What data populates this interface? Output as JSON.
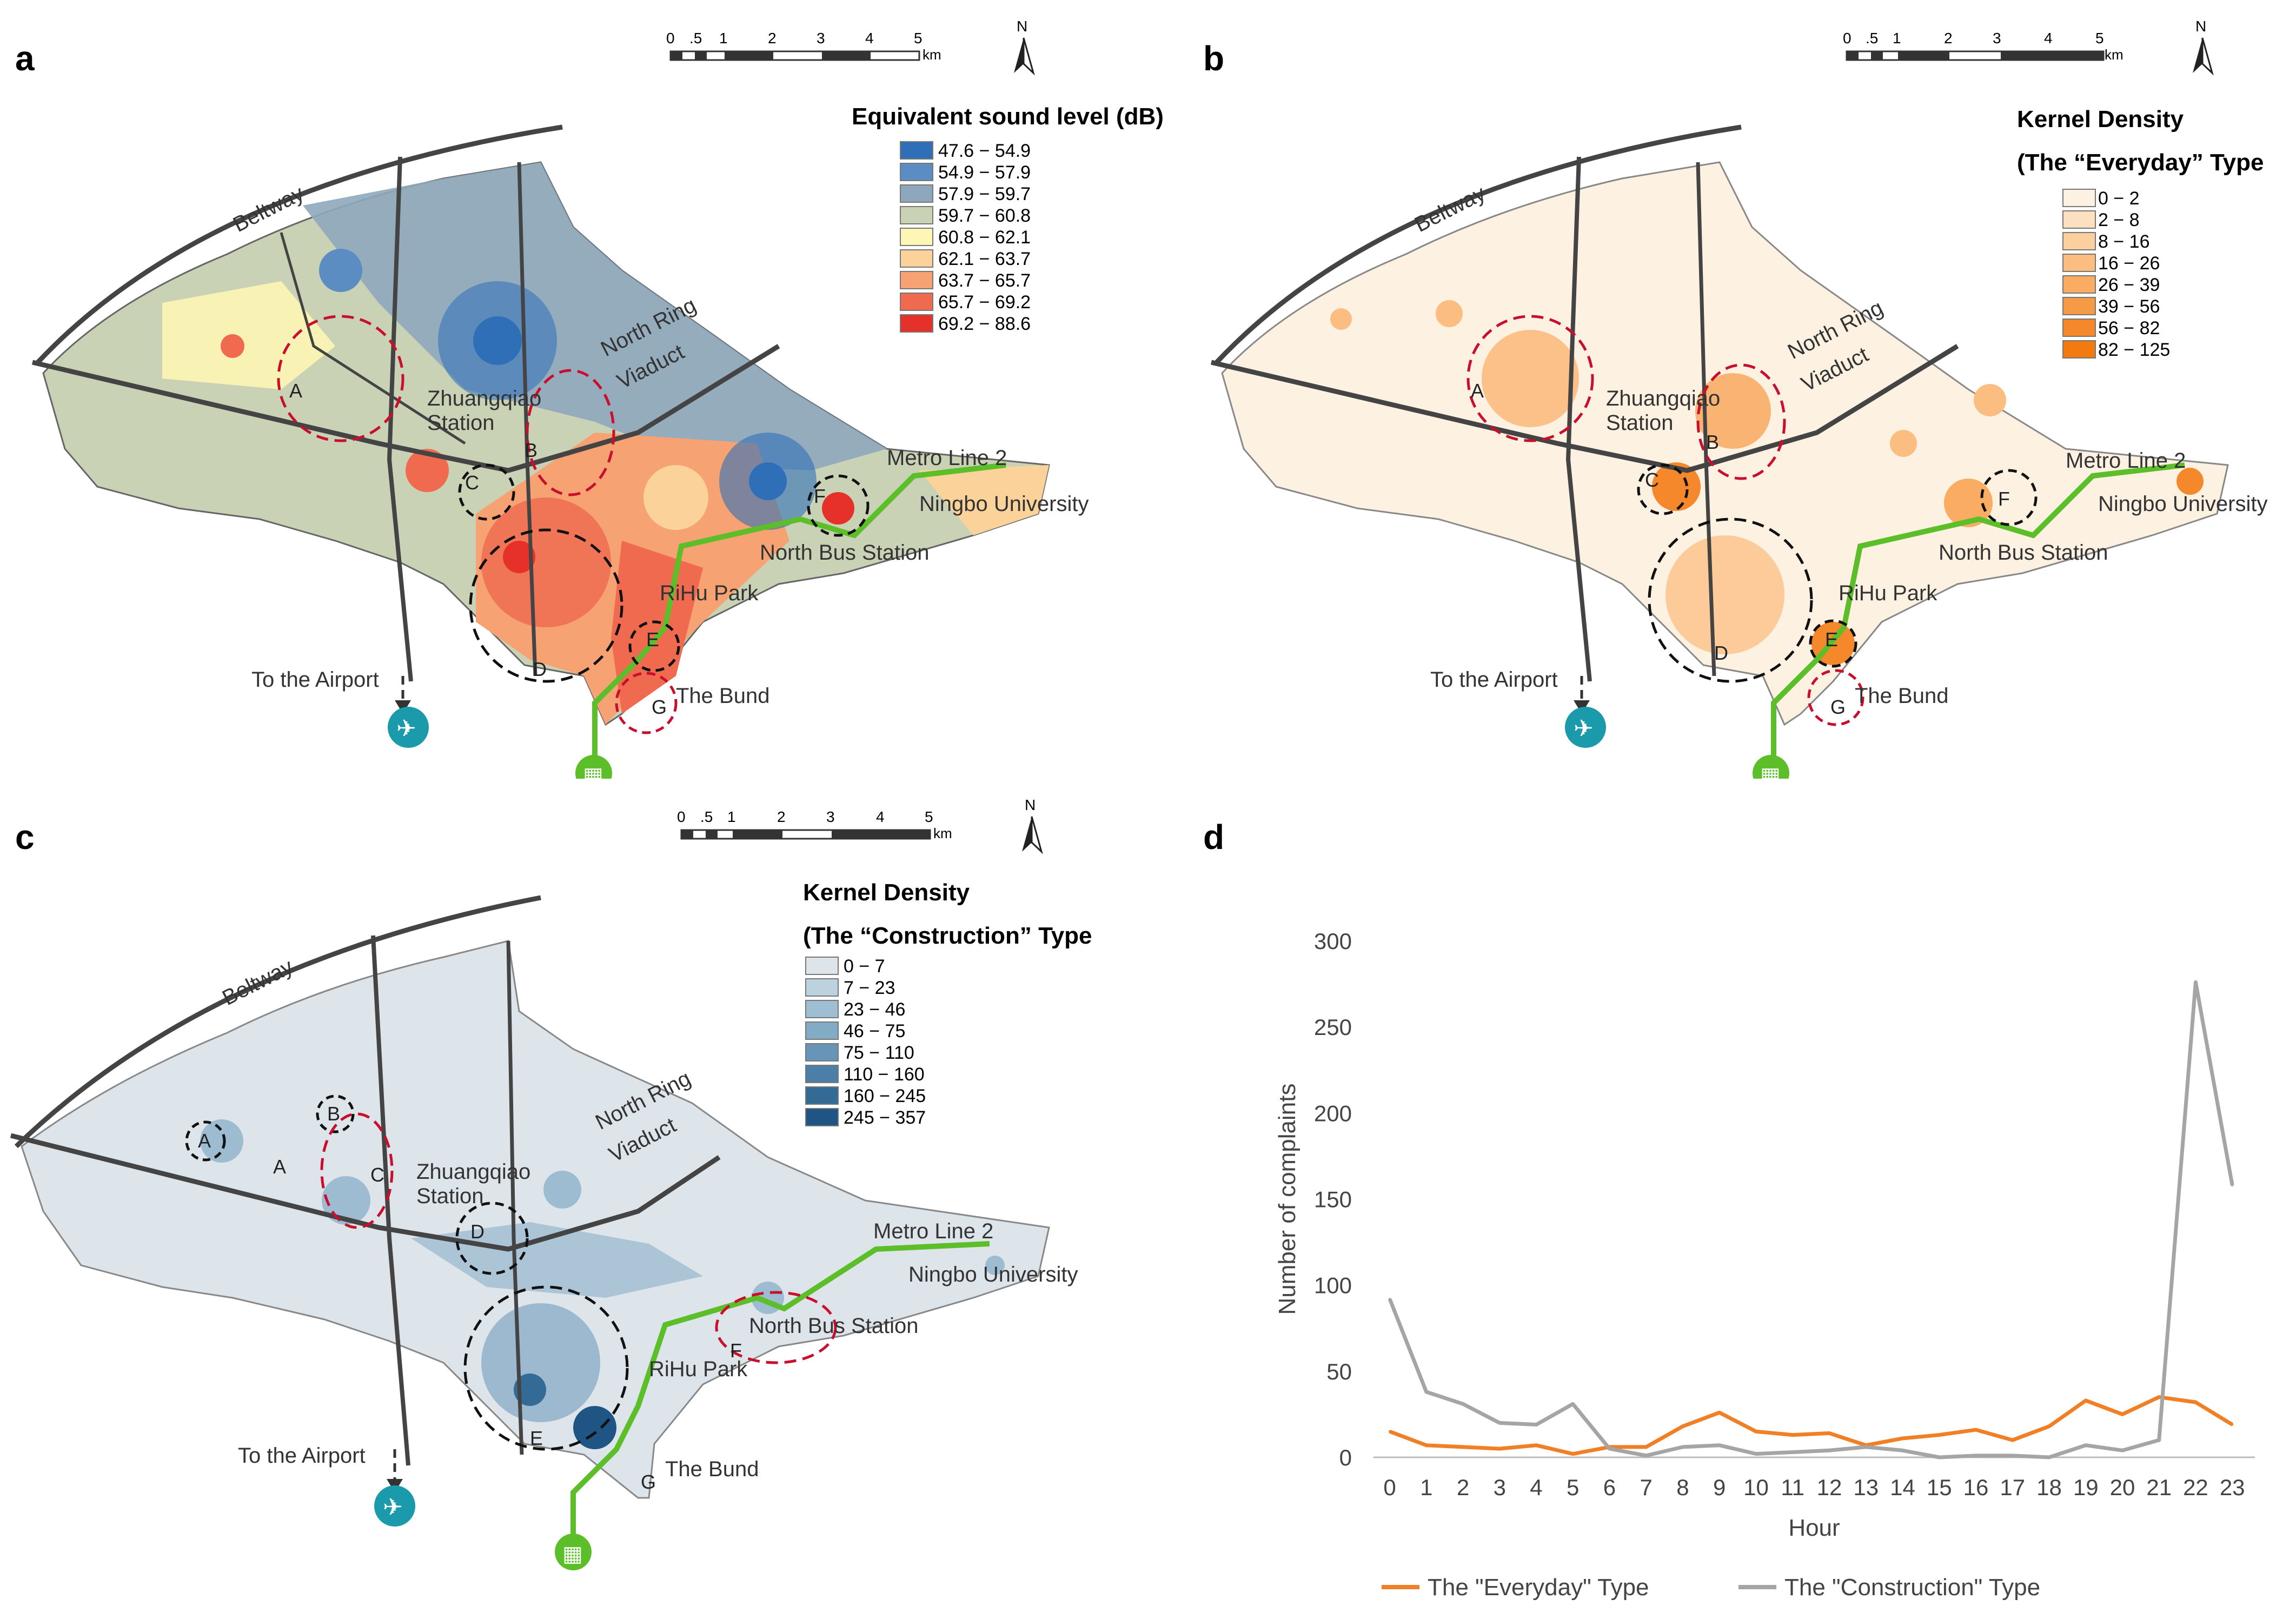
{
  "panels": {
    "a": {
      "label": "a",
      "legend_title": "Equivalent sound level (dB)",
      "legend": [
        "47.6 − 54.9",
        "54.9 − 57.9",
        "57.9 − 59.7",
        "59.7 − 60.8",
        "60.8 − 62.1",
        "62.1 − 63.7",
        "63.7 − 65.7",
        "65.7 − 69.2",
        "69.2 − 88.6"
      ],
      "legend_colors": [
        "#2e6fb8",
        "#5b8cc2",
        "#8fa7bd",
        "#c9d2b5",
        "#fdf6b4",
        "#fbd29a",
        "#f6a272",
        "#ef6a4f",
        "#e5312a"
      ]
    },
    "b": {
      "label": "b",
      "legend_title": "Kernel Density",
      "legend_subtitle": "(The “Everyday” Type",
      "legend": [
        "0 − 2",
        "2 − 8",
        "8 − 16",
        "16 − 26",
        "26 − 39",
        "39 − 56",
        "56 − 82",
        "82 − 125"
      ],
      "legend_colors": [
        "#fdf1e2",
        "#fde0c0",
        "#fccf9f",
        "#fbbe80",
        "#f9ac62",
        "#f79a45",
        "#f5882a",
        "#f37a10"
      ]
    },
    "c": {
      "label": "c",
      "legend_title": "Kernel Density",
      "legend_subtitle": "(The “Construction” Type",
      "legend": [
        "0 − 7",
        "7 − 23",
        "23 − 46",
        "46 − 75",
        "75 − 110",
        "110 − 160",
        "160 − 245",
        "245 − 357"
      ],
      "legend_colors": [
        "#dde5ea",
        "#bcd2df",
        "#9ebfd3",
        "#82abc6",
        "#6695b8",
        "#4b7fa8",
        "#346a96",
        "#1e5584"
      ]
    },
    "d": {
      "label": "d"
    }
  },
  "map": {
    "scale_labels": [
      "0",
      ".5",
      "1",
      "2",
      "3",
      "4",
      "5"
    ],
    "scale_unit": "km",
    "north": "N",
    "beltway": "Beltway",
    "north_ring_1": "North Ring",
    "north_ring_2": "Viaduct",
    "zhuangqiao_1": "Zhuangqiao",
    "zhuangqiao_2": "Station",
    "metro": "Metro Line 2",
    "ningbo_university": "Ningbo University",
    "north_bus_station": "North Bus Station",
    "rihu_park": "RiHu Park",
    "the_bund": "The Bund",
    "airport": "To the Airport"
  },
  "zones": {
    "a": [
      "A",
      "B",
      "C",
      "D",
      "E",
      "F",
      "G"
    ],
    "b": [
      "A",
      "B",
      "C",
      "D",
      "E",
      "F",
      "G"
    ],
    "c": [
      "A",
      "B",
      "A",
      "C",
      "D",
      "E",
      "F",
      "G"
    ]
  },
  "chart_data": {
    "type": "line",
    "title": "",
    "xlabel": "Hour",
    "ylabel": "Number of complaints",
    "categories": [
      "0",
      "1",
      "2",
      "3",
      "4",
      "5",
      "6",
      "7",
      "8",
      "9",
      "10",
      "11",
      "12",
      "13",
      "14",
      "15",
      "16",
      "17",
      "18",
      "19",
      "20",
      "21",
      "22",
      "23"
    ],
    "ylim": [
      0,
      300
    ],
    "yticks": [
      "0",
      "50",
      "100",
      "150",
      "200",
      "250",
      "300"
    ],
    "series": [
      {
        "name": "The \"Everyday\" Type",
        "color": "#f07f26",
        "values": [
          15,
          7,
          6,
          5,
          7,
          2,
          6,
          6,
          18,
          26,
          15,
          13,
          14,
          7,
          11,
          13,
          16,
          10,
          18,
          33,
          25,
          35,
          32,
          19
        ]
      },
      {
        "name": "The \"Construction\" Type",
        "color": "#a5a5a5",
        "values": [
          92,
          38,
          31,
          20,
          19,
          31,
          5,
          1,
          6,
          7,
          2,
          3,
          4,
          6,
          4,
          0,
          1,
          1,
          0,
          7,
          4,
          10,
          276,
          158
        ]
      }
    ],
    "legend_position": "bottom"
  }
}
